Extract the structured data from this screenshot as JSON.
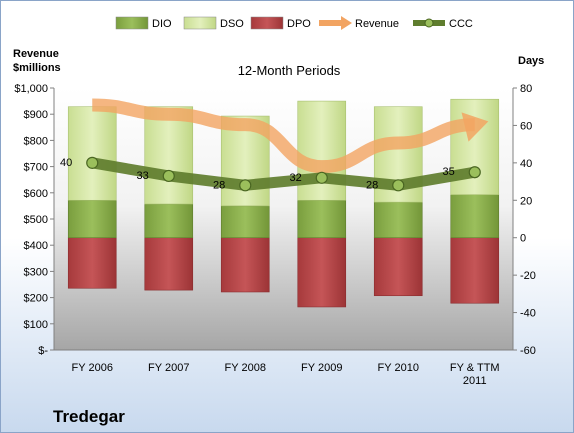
{
  "chart_data": {
    "type": "bar",
    "title": "12-Month Periods",
    "company": "Tredegar",
    "y_left_label": [
      "Revenue",
      "$millions"
    ],
    "y_right_label": "Days",
    "categories": [
      "FY 2006",
      "FY 2007",
      "FY 2008",
      "FY 2009",
      "FY 2010",
      "FY & TTM 2011"
    ],
    "y_left_ticks": [
      "$-",
      "$100",
      "$200",
      "$300",
      "$400",
      "$500",
      "$600",
      "$700",
      "$800",
      "$900",
      "$1,000"
    ],
    "y_right_ticks": [
      "-60",
      "-40",
      "-20",
      "0",
      "20",
      "40",
      "60",
      "80"
    ],
    "ylim_left": [
      0,
      1000
    ],
    "ylim_right": [
      -60,
      80
    ],
    "legend_position": "top",
    "series": [
      {
        "name": "DIO",
        "kind": "bar-stacked-positive",
        "color": "#8db050",
        "values": [
          20,
          18,
          17,
          20,
          19,
          23
        ]
      },
      {
        "name": "DSO",
        "kind": "bar-stacked-positive",
        "color": "#d7e8a8",
        "values": [
          50,
          52,
          48,
          53,
          51,
          51
        ]
      },
      {
        "name": "DPO",
        "kind": "bar-negative",
        "color": "#b8474a",
        "values": [
          -27,
          -28,
          -29,
          -37,
          -31,
          -35
        ]
      },
      {
        "name": "Revenue",
        "kind": "line-arrow",
        "axis": "left",
        "color": "#f2a462",
        "values": [
          935,
          900,
          860,
          700,
          790,
          860
        ]
      },
      {
        "name": "CCC",
        "kind": "line-markers",
        "axis": "right",
        "color": "#5f7d2e",
        "values": [
          40,
          33,
          28,
          32,
          28,
          35
        ]
      }
    ],
    "data_labels": [
      "40",
      "33",
      "28",
      "32",
      "28",
      "35"
    ]
  }
}
